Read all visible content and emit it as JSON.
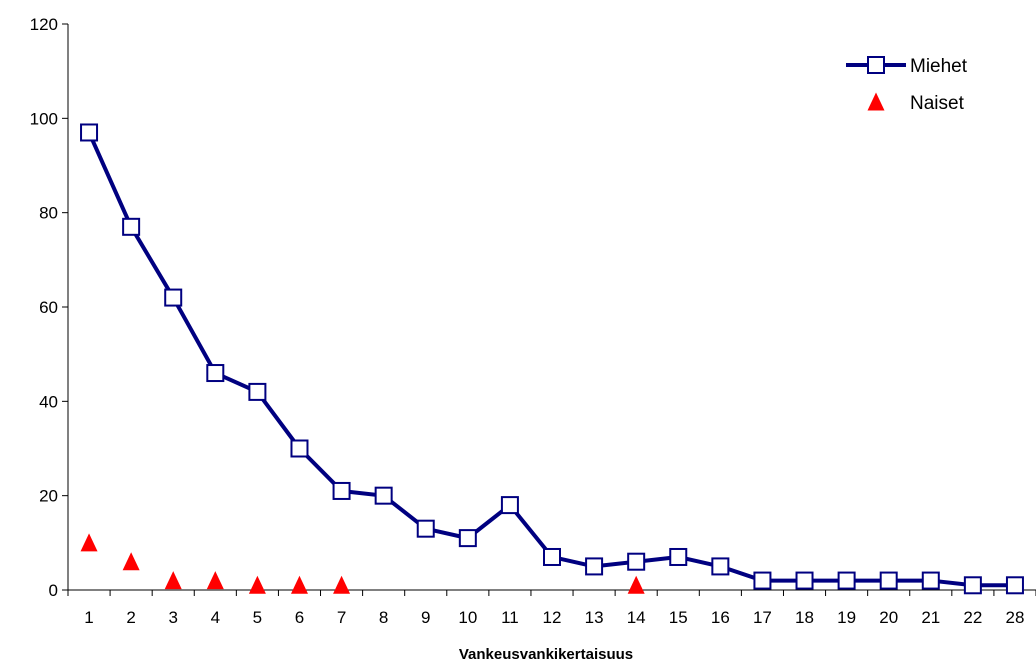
{
  "chart_data": {
    "type": "line",
    "title": "",
    "xlabel": "Vankeusvankikertaisuus",
    "ylabel": "",
    "categories": [
      "1",
      "2",
      "3",
      "4",
      "5",
      "6",
      "7",
      "8",
      "9",
      "10",
      "11",
      "12",
      "13",
      "14",
      "15",
      "16",
      "17",
      "18",
      "19",
      "20",
      "21",
      "22",
      "28"
    ],
    "ylim": [
      0,
      120
    ],
    "yticks": [
      "0",
      "20",
      "40",
      "60",
      "80",
      "100",
      "120"
    ],
    "grid": false,
    "legend_position": "top-right",
    "series": [
      {
        "name": "Miehet",
        "style": "line-with-square-markers",
        "color": "#000080",
        "values": [
          97,
          77,
          62,
          46,
          42,
          30,
          21,
          20,
          13,
          11,
          18,
          7,
          5,
          6,
          7,
          5,
          2,
          2,
          2,
          2,
          2,
          1,
          1
        ]
      },
      {
        "name": "Naiset",
        "style": "triangle-markers",
        "color": "#ff0000",
        "values": [
          10,
          6,
          2,
          2,
          1,
          1,
          1,
          null,
          null,
          null,
          null,
          null,
          null,
          1,
          null,
          null,
          null,
          null,
          null,
          null,
          null,
          null,
          null
        ]
      }
    ]
  }
}
